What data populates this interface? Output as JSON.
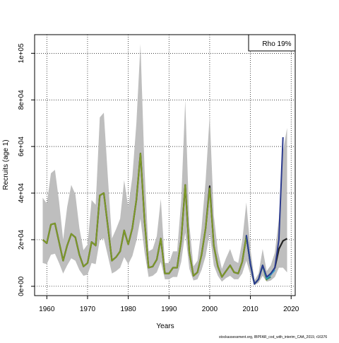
{
  "chart_data": {
    "type": "line",
    "title": "",
    "xlabel": "Years",
    "ylabel": "Recruits (age 1)",
    "xlim": [
      1957,
      2021
    ],
    "ylim": [
      -4000,
      108000
    ],
    "x_ticks": [
      1960,
      1970,
      1980,
      1990,
      2000,
      2010,
      2020
    ],
    "y_ticks": [
      0,
      20000,
      40000,
      60000,
      80000,
      100000
    ],
    "y_tick_labels": [
      "0e+00",
      "2e+04",
      "4e+04",
      "6e+04",
      "8e+04",
      "1e+05"
    ],
    "grid": true,
    "legend_box": "Rho 19%",
    "legend_position": "top-right",
    "years": [
      1959,
      1960,
      1961,
      1962,
      1963,
      1964,
      1965,
      1966,
      1967,
      1968,
      1969,
      1970,
      1971,
      1972,
      1973,
      1974,
      1975,
      1976,
      1977,
      1978,
      1979,
      1980,
      1981,
      1982,
      1983,
      1984,
      1985,
      1986,
      1987,
      1988,
      1989,
      1990,
      1991,
      1992,
      1993,
      1994,
      1995,
      1996,
      1997,
      1998,
      1999,
      2000,
      2001,
      2002,
      2003,
      2004,
      2005,
      2006,
      2007,
      2008,
      2009,
      2010,
      2011,
      2012,
      2013,
      2014,
      2015,
      2016,
      2017,
      2018,
      2019
    ],
    "series": [
      {
        "role": "median",
        "color": "#222222",
        "values": [
          20000,
          18500,
          26500,
          27000,
          19000,
          11000,
          17500,
          22500,
          21000,
          13500,
          8500,
          10000,
          19000,
          17500,
          39000,
          40000,
          25500,
          11000,
          12500,
          15000,
          24000,
          18000,
          25000,
          37000,
          57000,
          28000,
          8000,
          8500,
          11500,
          20500,
          5500,
          5500,
          8000,
          8000,
          20000,
          43500,
          14500,
          4500,
          6000,
          13500,
          25000,
          43000,
          17500,
          8500,
          4000,
          6500,
          9000,
          6000,
          5500,
          10500,
          21500,
          9500,
          1000,
          3000,
          9000,
          3500,
          5000,
          8000,
          16000,
          19500,
          20500
        ]
      },
      {
        "role": "band-upper",
        "color": "#bebebe",
        "values": [
          38000,
          35500,
          48500,
          50000,
          36500,
          20000,
          34000,
          43500,
          39500,
          25000,
          15500,
          18000,
          37000,
          35000,
          72500,
          74500,
          46500,
          20500,
          24500,
          29000,
          45500,
          34000,
          47000,
          70000,
          104000,
          50000,
          15000,
          16000,
          21500,
          37500,
          10000,
          10000,
          15000,
          15000,
          37000,
          80000,
          26500,
          8500,
          11000,
          25000,
          45500,
          73500,
          30500,
          15000,
          7500,
          12000,
          16000,
          11000,
          10000,
          19500,
          36000,
          16000,
          2500,
          5500,
          16000,
          6500,
          9000,
          14500,
          29000,
          58000,
          68000
        ]
      },
      {
        "role": "band-lower",
        "color": "#bebebe",
        "values": [
          10000,
          9500,
          13500,
          14000,
          10000,
          5500,
          9000,
          12000,
          11000,
          7000,
          4500,
          5000,
          10000,
          9500,
          20000,
          20500,
          13000,
          5500,
          6500,
          8000,
          12500,
          9500,
          13000,
          19500,
          29000,
          14500,
          4000,
          4500,
          6000,
          10500,
          3000,
          3000,
          4000,
          4000,
          10500,
          23000,
          7500,
          2500,
          3000,
          7000,
          13000,
          23000,
          9000,
          4500,
          2000,
          3500,
          4500,
          3000,
          3000,
          5500,
          11000,
          5000,
          500,
          1500,
          4500,
          2000,
          2500,
          4000,
          8000,
          8000,
          6000
        ]
      },
      {
        "role": "retrospective-peel",
        "color": "#7e9a28",
        "x": [
          1959,
          1960,
          1961,
          1962,
          1963,
          1964,
          1965,
          1966,
          1967,
          1968,
          1969,
          1970,
          1971,
          1972,
          1973,
          1974,
          1975,
          1976,
          1977,
          1978,
          1979,
          1980,
          1981,
          1982,
          1983,
          1984,
          1985,
          1986,
          1987,
          1988,
          1989,
          1990,
          1991,
          1992,
          1993,
          1994,
          1995,
          1996,
          1997,
          1998,
          1999,
          2000,
          2001,
          2002,
          2003,
          2004,
          2005,
          2006,
          2007,
          2008,
          2009,
          2010,
          2011,
          2012,
          2013,
          2014
        ],
        "values": [
          20000,
          18500,
          26500,
          27000,
          19000,
          11000,
          17500,
          22500,
          21000,
          13500,
          8500,
          10000,
          19000,
          17500,
          39000,
          40000,
          25500,
          11000,
          12500,
          15000,
          24000,
          18000,
          25000,
          37000,
          57000,
          28000,
          8000,
          8500,
          11500,
          20500,
          5500,
          5500,
          8000,
          8000,
          20000,
          43500,
          14500,
          4500,
          6000,
          13500,
          25000,
          42000,
          17500,
          8500,
          4000,
          6500,
          9000,
          6000,
          5500,
          10500,
          21500,
          9500,
          1000,
          3000,
          9000,
          2500
        ]
      },
      {
        "role": "retrospective-peel",
        "color": "#2a8a7a",
        "x": [
          2009,
          2010,
          2011,
          2012,
          2013,
          2014,
          2015
        ],
        "values": [
          21500,
          9500,
          1000,
          3000,
          9000,
          3000,
          4000
        ]
      },
      {
        "role": "retrospective-peel",
        "color": "#3aa0c8",
        "x": [
          2009,
          2010,
          2011,
          2012,
          2013,
          2014,
          2015,
          2016
        ],
        "values": [
          22000,
          9500,
          1000,
          3000,
          9000,
          3500,
          5000,
          7000
        ]
      },
      {
        "role": "retrospective-peel",
        "color": "#2b3a8e",
        "x": [
          2009,
          2010,
          2011,
          2012,
          2013,
          2014,
          2015,
          2016,
          2017,
          2018
        ],
        "values": [
          22000,
          9500,
          1000,
          3000,
          9000,
          4000,
          5500,
          8000,
          20000,
          64000
        ]
      }
    ]
  },
  "footnote": "stockassessment.org, IBPFAR_cod_with_interim_CAA_2019, r16376"
}
